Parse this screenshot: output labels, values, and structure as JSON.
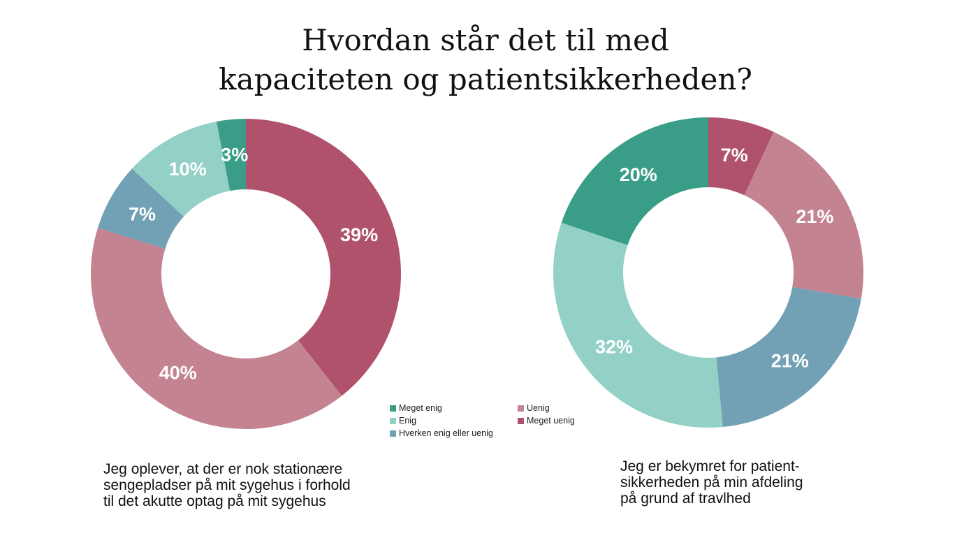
{
  "title": {
    "line1": "Hvordan står det til med",
    "line2": "kapaciteten og patientsikkerheden?"
  },
  "colors": {
    "meget_enig": "#3a9d87",
    "enig": "#93d0c6",
    "hverken": "#72a1b5",
    "uenig": "#c48391",
    "meget_uenig": "#b0526c"
  },
  "legend": [
    {
      "label": "Meget enig",
      "color": "#3a9d87"
    },
    {
      "label": "Enig",
      "color": "#93d0c6"
    },
    {
      "label": "Hverken enig eller uenig",
      "color": "#72a1b5"
    },
    {
      "label": "Uenig",
      "color": "#c48391"
    },
    {
      "label": "Meget uenig",
      "color": "#b0526c"
    }
  ],
  "captions": {
    "left": [
      "Jeg oplever, at der er nok stationære",
      "sengepladser på mit sygehus i forhold",
      "til det akutte optag på mit sygehus"
    ],
    "right": [
      "Jeg er bekymret for patient-",
      "sikkerheden på min afdeling",
      "på grund af travlhed"
    ]
  },
  "chart_data": [
    {
      "type": "pie",
      "donut": true,
      "title": "Jeg oplever, at der er nok stationære sengepladser på mit sygehus i forhold til det akutte optag på mit sygehus",
      "categories": [
        "Meget uenig",
        "Uenig",
        "Hverken enig eller uenig",
        "Enig",
        "Meget enig"
      ],
      "values": [
        39,
        40,
        7,
        10,
        3
      ],
      "labels": [
        "39%",
        "40%",
        "7%",
        "10%",
        "3%"
      ],
      "colors": [
        "#b0526c",
        "#c48391",
        "#72a1b5",
        "#93d0c6",
        "#3a9d87"
      ]
    },
    {
      "type": "pie",
      "donut": true,
      "title": "Jeg er bekymret for patientsikkerheden på min afdeling på grund af travlhed",
      "categories": [
        "Meget uenig",
        "Uenig",
        "Hverken enig eller uenig",
        "Enig",
        "Meget enig"
      ],
      "values": [
        7,
        21,
        21,
        32,
        20
      ],
      "labels": [
        "7%",
        "21%",
        "21%",
        "32%",
        "20%"
      ],
      "colors": [
        "#b0526c",
        "#c48391",
        "#72a1b5",
        "#93d0c6",
        "#3a9d87"
      ]
    }
  ]
}
